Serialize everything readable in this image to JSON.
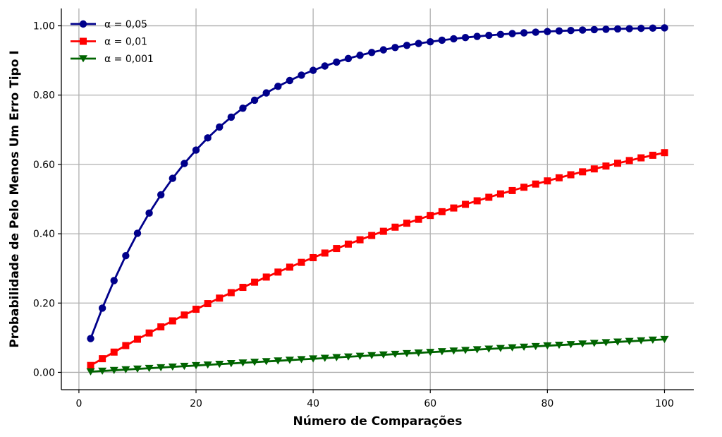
{
  "chart_data": {
    "type": "line",
    "title": "",
    "xlabel": "Número de Comparações",
    "ylabel": "Probabilidade de Pelo Menos Um Erro Tipo I",
    "xlim": [
      -3,
      105
    ],
    "ylim": [
      -0.05,
      1.05
    ],
    "xticks": [
      0,
      20,
      40,
      60,
      80,
      100
    ],
    "xtick_labels": [
      "0",
      "20",
      "40",
      "60",
      "80",
      "100"
    ],
    "yticks": [
      0,
      0.2,
      0.4,
      0.6,
      0.8,
      1.0
    ],
    "ytick_labels": [
      "0.00",
      "0.20",
      "0.40",
      "0.60",
      "0.80",
      "1.00"
    ],
    "grid": true,
    "legend_position": "top-left",
    "x": [
      2,
      4,
      6,
      8,
      10,
      12,
      14,
      16,
      18,
      20,
      22,
      24,
      26,
      28,
      30,
      32,
      34,
      36,
      38,
      40,
      42,
      44,
      46,
      48,
      50,
      52,
      54,
      56,
      58,
      60,
      62,
      64,
      66,
      68,
      70,
      72,
      74,
      76,
      78,
      80,
      82,
      84,
      86,
      88,
      90,
      92,
      94,
      96,
      98,
      100
    ],
    "series": [
      {
        "name": "α = 0,05",
        "color": "#00008b",
        "marker": "circle",
        "values": [
          0.0975,
          0.1855,
          0.2649,
          0.3366,
          0.4013,
          0.4596,
          0.5123,
          0.5599,
          0.6028,
          0.6415,
          0.6765,
          0.708,
          0.7365,
          0.7622,
          0.7854,
          0.8063,
          0.8252,
          0.8422,
          0.8576,
          0.8715,
          0.884,
          0.8953,
          0.9056,
          0.9148,
          0.9231,
          0.9306,
          0.9374,
          0.9435,
          0.949,
          0.9539,
          0.9584,
          0.9625,
          0.9661,
          0.9694,
          0.9724,
          0.9751,
          0.9775,
          0.9797,
          0.9817,
          0.9835,
          0.9851,
          0.9865,
          0.9878,
          0.989,
          0.9901,
          0.9911,
          0.9919,
          0.9927,
          0.9934,
          0.9941
        ]
      },
      {
        "name": "α = 0,01",
        "color": "#ff0000",
        "marker": "square",
        "values": [
          0.0199,
          0.0394,
          0.0585,
          0.0773,
          0.0956,
          0.1136,
          0.1313,
          0.1486,
          0.1655,
          0.1821,
          0.1984,
          0.2143,
          0.23,
          0.2453,
          0.2603,
          0.275,
          0.2894,
          0.3036,
          0.3174,
          0.331,
          0.3443,
          0.3573,
          0.3701,
          0.3826,
          0.395,
          0.4071,
          0.419,
          0.4304,
          0.4416,
          0.4528,
          0.4636,
          0.4743,
          0.4848,
          0.495,
          0.5052,
          0.515,
          0.5246,
          0.5342,
          0.5434,
          0.5525,
          0.5614,
          0.5702,
          0.5787,
          0.5871,
          0.5953,
          0.6034,
          0.6112,
          0.619,
          0.6265,
          0.634
        ]
      },
      {
        "name": "α = 0,001",
        "color": "#006400",
        "marker": "triangle-down",
        "values": [
          0.002,
          0.004,
          0.006,
          0.008,
          0.01,
          0.0119,
          0.0139,
          0.0159,
          0.0178,
          0.0198,
          0.0218,
          0.0237,
          0.0257,
          0.0276,
          0.0296,
          0.0315,
          0.0334,
          0.0354,
          0.0373,
          0.0392,
          0.0411,
          0.0431,
          0.045,
          0.0469,
          0.0488,
          0.0507,
          0.0526,
          0.0545,
          0.0563,
          0.0582,
          0.0601,
          0.062,
          0.0638,
          0.0657,
          0.0676,
          0.0694,
          0.0713,
          0.0731,
          0.075,
          0.0769,
          0.0787,
          0.0805,
          0.0824,
          0.0842,
          0.0861,
          0.0879,
          0.0897,
          0.0915,
          0.0934,
          0.0952
        ]
      }
    ]
  }
}
